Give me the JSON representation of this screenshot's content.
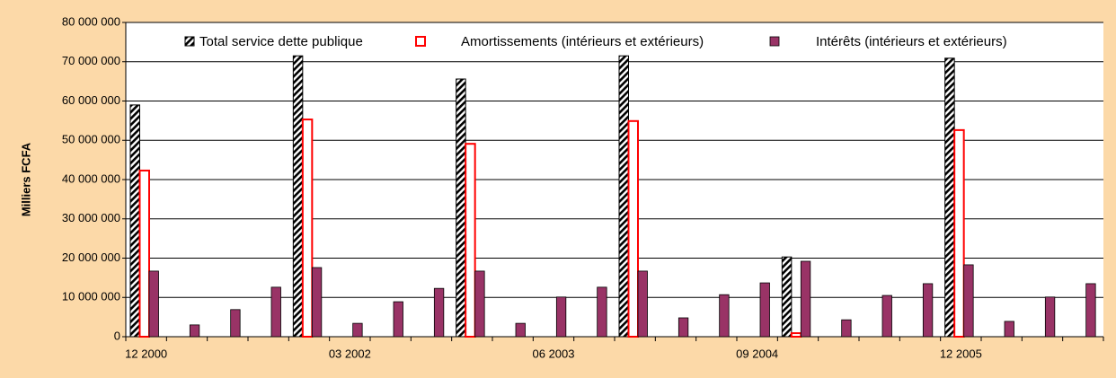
{
  "chart_data": {
    "type": "bar",
    "y_label": "Milliers FCFA",
    "categories": [
      "12 2000",
      null,
      null,
      null,
      null,
      "03 2002",
      null,
      null,
      null,
      null,
      "06 2003",
      null,
      null,
      null,
      null,
      "09 2004",
      null,
      null,
      null,
      null,
      "12 2005",
      null,
      null,
      null
    ],
    "series": [
      {
        "name": "Total service dette publique",
        "color": "#000000",
        "values": [
          59000000,
          null,
          null,
          null,
          71500000,
          null,
          null,
          null,
          65600000,
          null,
          null,
          null,
          71500000,
          null,
          null,
          null,
          20300000,
          null,
          null,
          null,
          70900000,
          null,
          null,
          null
        ]
      },
      {
        "name": "Amortissements (intérieurs et extérieurs)",
        "color": "#ff0000",
        "values": [
          42300000,
          null,
          null,
          null,
          55300000,
          null,
          null,
          null,
          49100000,
          null,
          null,
          null,
          54900000,
          null,
          null,
          null,
          900000,
          null,
          null,
          null,
          52600000,
          null,
          null,
          null
        ]
      },
      {
        "name": "Intérêts (intérieurs et extérieurs)",
        "color": "#993366",
        "values": [
          16700000,
          3000000,
          6900000,
          12600000,
          17600000,
          3400000,
          8900000,
          12300000,
          16700000,
          3400000,
          10100000,
          12600000,
          16700000,
          4800000,
          10700000,
          13700000,
          19200000,
          4300000,
          10500000,
          13500000,
          18300000,
          3900000,
          10100000,
          13500000
        ]
      }
    ],
    "ylim": [
      0,
      80000000
    ],
    "yticks": [
      {
        "value": 0,
        "label": "0"
      },
      {
        "value": 10000000,
        "label": "10 000 000"
      },
      {
        "value": 20000000,
        "label": "20 000 000"
      },
      {
        "value": 30000000,
        "label": "30 000 000"
      },
      {
        "value": 40000000,
        "label": "40 000 000"
      },
      {
        "value": 50000000,
        "label": "50 000 000"
      },
      {
        "value": 60000000,
        "label": "60 000 000"
      },
      {
        "value": 70000000,
        "label": "70 000 000"
      },
      {
        "value": 80000000,
        "label": "80 000 000"
      }
    ],
    "grid": true
  }
}
